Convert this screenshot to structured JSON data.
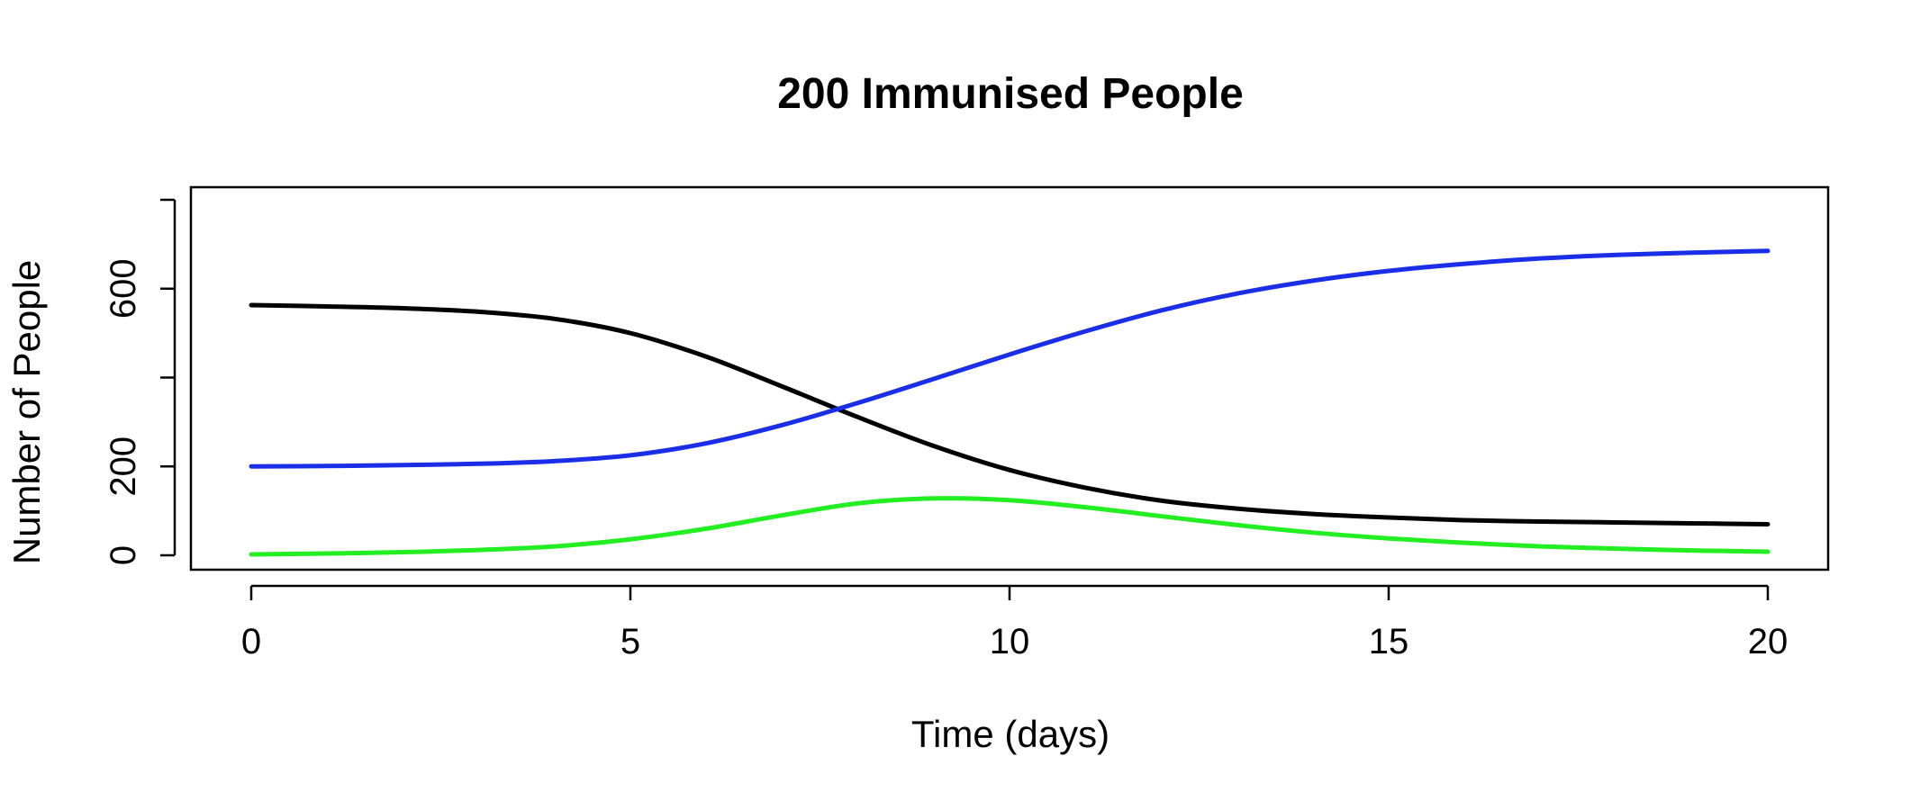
{
  "chart_data": {
    "type": "line",
    "title": "200 Immunised People",
    "xlabel": "Time (days)",
    "ylabel": "Number of People",
    "xlim": [
      0,
      20
    ],
    "ylim": [
      0,
      800
    ],
    "x_ticks": [
      {
        "value": 0,
        "label": "0"
      },
      {
        "value": 5,
        "label": "5"
      },
      {
        "value": 10,
        "label": "10"
      },
      {
        "value": 15,
        "label": "15"
      },
      {
        "value": 20,
        "label": "20"
      }
    ],
    "y_ticks": [
      {
        "value": 0,
        "label": "0"
      },
      {
        "value": 200,
        "label": "200"
      },
      {
        "value": 400,
        "label": ""
      },
      {
        "value": 600,
        "label": "600"
      },
      {
        "value": 800,
        "label": ""
      }
    ],
    "grid": false,
    "legend": "none",
    "series": [
      {
        "color": "#000000",
        "x": [
          0,
          1,
          2,
          3,
          4,
          5,
          6,
          7,
          8,
          9,
          10,
          11,
          12,
          13,
          14,
          15,
          16,
          17,
          18,
          19,
          20
        ],
        "values": [
          563,
          560,
          556,
          548,
          532,
          500,
          447,
          380,
          311,
          246,
          192,
          152,
          123,
          105,
          93,
          85,
          79,
          76,
          74,
          72,
          70
        ]
      },
      {
        "color": "#1a2ee8",
        "x": [
          0,
          1,
          2,
          3,
          4,
          5,
          6,
          7,
          8,
          9,
          10,
          11,
          12,
          13,
          14,
          15,
          16,
          17,
          18,
          19,
          20
        ],
        "values": [
          200,
          201,
          203,
          206,
          212,
          225,
          252,
          293,
          343,
          397,
          452,
          504,
          551,
          589,
          618,
          640,
          656,
          668,
          676,
          681,
          685
        ]
      },
      {
        "color": "#22ee22",
        "x": [
          0,
          1,
          2,
          3,
          4,
          5,
          6,
          7,
          8,
          9,
          10,
          11,
          12,
          13,
          14,
          15,
          16,
          17,
          18,
          19,
          20
        ],
        "values": [
          2,
          4,
          7,
          12,
          20,
          36,
          60,
          90,
          117,
          128,
          124,
          108,
          88,
          68,
          51,
          38,
          28,
          20,
          15,
          11,
          8
        ]
      }
    ]
  }
}
